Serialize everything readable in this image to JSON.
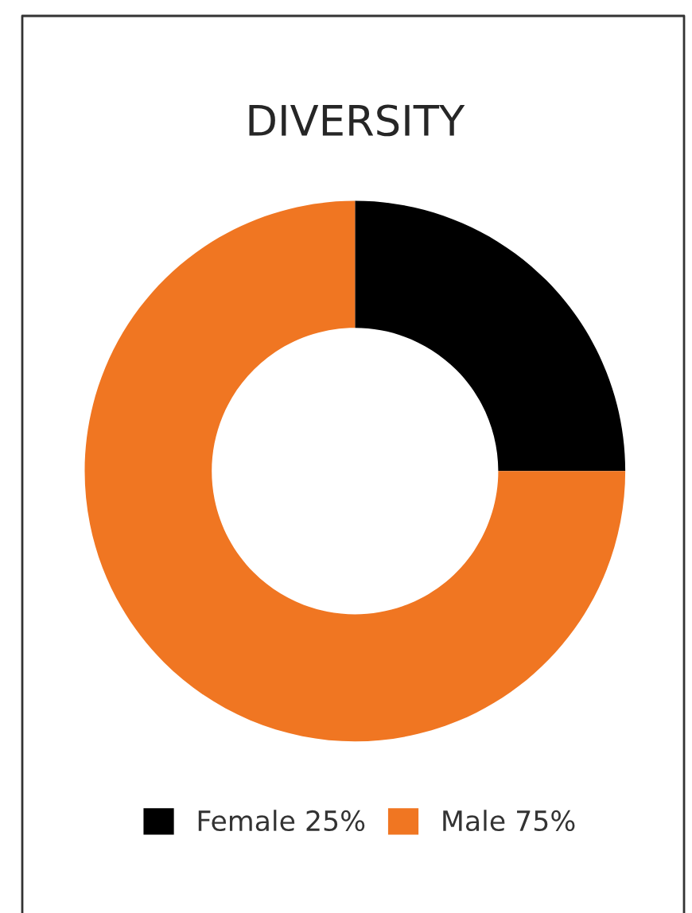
{
  "chart_data": {
    "type": "donut",
    "title": "DIVERSITY",
    "categories": [
      "Female",
      "Male"
    ],
    "values": [
      25,
      75
    ],
    "value_labels": [
      "25%",
      "75%"
    ],
    "colors": [
      "#000000",
      "#f07622"
    ],
    "legend": "bottom"
  }
}
